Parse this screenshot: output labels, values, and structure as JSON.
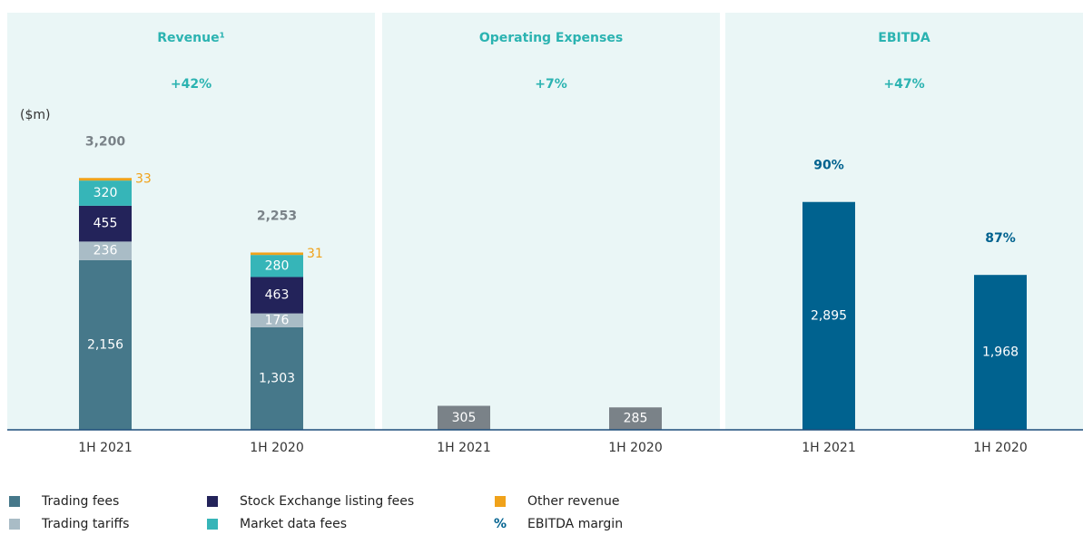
{
  "chart_data": [
    {
      "type": "bar",
      "stacked": true,
      "title": "Revenue¹",
      "change": "+42%",
      "unit": "($m)",
      "categories": [
        "1H 2021",
        "1H 2020"
      ],
      "series": [
        {
          "name": "Trading fees",
          "color": "#46788a",
          "values": [
            2156,
            1303
          ],
          "value_labels": [
            "2,156",
            "1,303"
          ]
        },
        {
          "name": "Trading tariffs",
          "color": "#a9bcc6",
          "values": [
            236,
            176
          ]
        },
        {
          "name": "Stock Exchange listing fees",
          "color": "#23235a",
          "values": [
            455,
            463
          ]
        },
        {
          "name": "Market data fees",
          "color": "#36b5b8",
          "values": [
            320,
            280
          ]
        },
        {
          "name": "Other revenue",
          "color": "#f0a21a",
          "values": [
            33,
            31
          ]
        }
      ],
      "totals": [
        3200,
        2253
      ],
      "total_labels": [
        "3,200",
        "2,253"
      ],
      "ylim": [
        0,
        5300
      ]
    },
    {
      "type": "bar",
      "title": "Operating Expenses",
      "change": "+7%",
      "categories": [
        "1H 2021",
        "1H 2020"
      ],
      "values": [
        305,
        285
      ],
      "color": "#7a8288",
      "ylim": [
        0,
        5300
      ]
    },
    {
      "type": "bar",
      "title": "EBITDA",
      "change": "+47%",
      "categories": [
        "1H 2021",
        "1H 2020"
      ],
      "values": [
        2895,
        1968
      ],
      "value_labels": [
        "2,895",
        "1,968"
      ],
      "color": "#00628f",
      "margin": {
        "name": "EBITDA margin",
        "symbol": "%",
        "values": [
          90,
          87
        ],
        "value_labels": [
          "90%",
          "87%"
        ]
      },
      "ylim": [
        0,
        5300
      ]
    }
  ]
}
